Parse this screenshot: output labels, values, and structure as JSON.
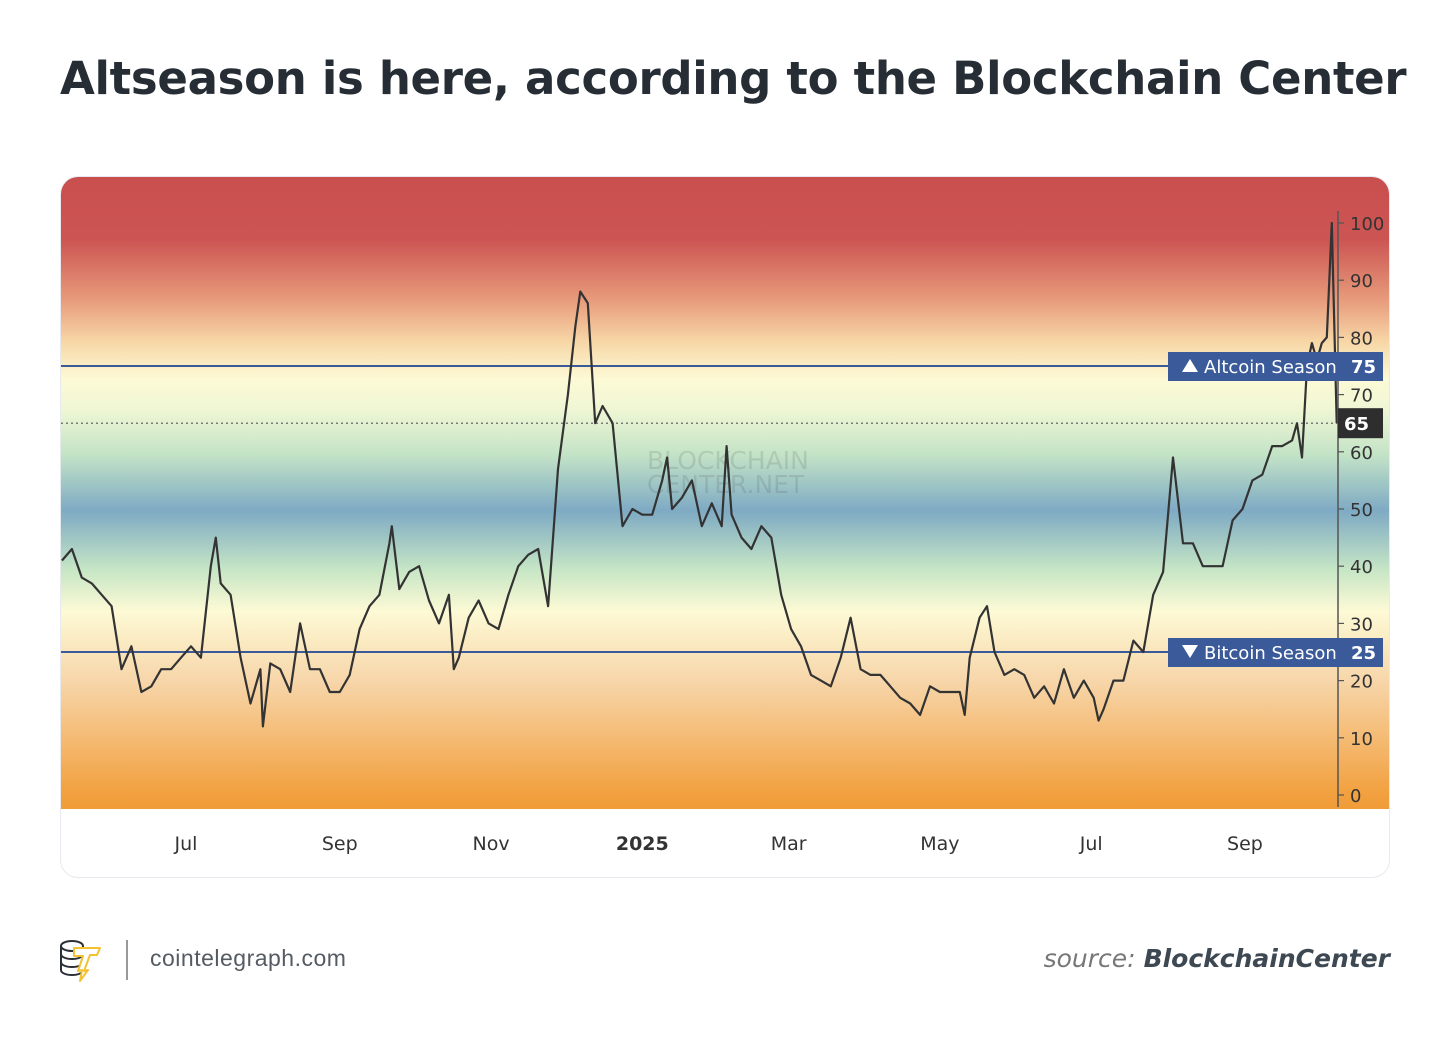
{
  "title": "Altseason is here, according to the Blockchain Center",
  "footer": {
    "site": "cointelegraph.com",
    "source_label": "source:",
    "source_name": "BlockchainCenter",
    "logo_icon": "cointelegraph-logo-icon"
  },
  "colors": {
    "line": "#333333",
    "season_band": "#3a5a9a",
    "current_box": "#2e2e2e",
    "gradient_top": "#c94f4f",
    "gradient_mid": "#7eaac4",
    "gradient_bottom": "#f2a040"
  },
  "chart_data": {
    "type": "line",
    "title": "",
    "watermark": "BLOCKCHAIN CENTER.NET",
    "ylim": [
      0,
      100
    ],
    "y_ticks": [
      "0",
      "10",
      "20",
      "30",
      "40",
      "50",
      "60",
      "70",
      "80",
      "90",
      "100"
    ],
    "x_ticks": [
      {
        "label": "Jul",
        "date": "2024-07-01",
        "bold": false
      },
      {
        "label": "Sep",
        "date": "2024-09-01",
        "bold": false
      },
      {
        "label": "Nov",
        "date": "2024-11-01",
        "bold": false
      },
      {
        "label": "2025",
        "date": "2025-01-01",
        "bold": true
      },
      {
        "label": "Mar",
        "date": "2025-03-01",
        "bold": false
      },
      {
        "label": "May",
        "date": "2025-05-01",
        "bold": false
      },
      {
        "label": "Jul",
        "date": "2025-07-01",
        "bold": false
      },
      {
        "label": "Sep",
        "date": "2025-09-01",
        "bold": false
      }
    ],
    "grid": false,
    "reference_lines": [
      {
        "label": "Altcoin Season",
        "value": 75,
        "value_label": "75",
        "direction": "up"
      },
      {
        "label": "Bitcoin Season",
        "value": 25,
        "value_label": "25",
        "direction": "down"
      }
    ],
    "current": {
      "value": 65,
      "label": "65"
    },
    "series": [
      {
        "x": [
          "2024-05-12",
          "2024-05-16",
          "2024-05-20",
          "2024-05-24",
          "2024-05-28",
          "2024-06-01",
          "2024-06-05",
          "2024-06-09",
          "2024-06-13",
          "2024-06-17",
          "2024-06-21",
          "2024-06-25",
          "2024-06-29",
          "2024-07-03",
          "2024-07-07",
          "2024-07-11",
          "2024-07-13",
          "2024-07-15",
          "2024-07-19",
          "2024-07-23",
          "2024-07-27",
          "2024-07-31",
          "2024-08-01",
          "2024-08-04",
          "2024-08-08",
          "2024-08-12",
          "2024-08-16",
          "2024-08-20",
          "2024-08-24",
          "2024-08-28",
          "2024-09-01",
          "2024-09-05",
          "2024-09-09",
          "2024-09-13",
          "2024-09-17",
          "2024-09-21",
          "2024-09-22",
          "2024-09-25",
          "2024-09-29",
          "2024-10-03",
          "2024-10-07",
          "2024-10-11",
          "2024-10-15",
          "2024-10-17",
          "2024-10-19",
          "2024-10-23",
          "2024-10-27",
          "2024-10-31",
          "2024-11-04",
          "2024-11-08",
          "2024-11-12",
          "2024-11-16",
          "2024-11-20",
          "2024-11-24",
          "2024-11-28",
          "2024-12-02",
          "2024-12-05",
          "2024-12-07",
          "2024-12-10",
          "2024-12-13",
          "2024-12-16",
          "2024-12-20",
          "2024-12-24",
          "2024-12-28",
          "2025-01-01",
          "2025-01-05",
          "2025-01-09",
          "2025-01-11",
          "2025-01-13",
          "2025-01-17",
          "2025-01-21",
          "2025-01-25",
          "2025-01-29",
          "2025-02-02",
          "2025-02-04",
          "2025-02-06",
          "2025-02-10",
          "2025-02-14",
          "2025-02-18",
          "2025-02-22",
          "2025-02-26",
          "2025-03-02",
          "2025-03-06",
          "2025-03-10",
          "2025-03-14",
          "2025-03-18",
          "2025-03-22",
          "2025-03-26",
          "2025-03-30",
          "2025-04-03",
          "2025-04-07",
          "2025-04-11",
          "2025-04-15",
          "2025-04-19",
          "2025-04-23",
          "2025-04-27",
          "2025-05-01",
          "2025-05-05",
          "2025-05-09",
          "2025-05-11",
          "2025-05-13",
          "2025-05-17",
          "2025-05-20",
          "2025-05-23",
          "2025-05-27",
          "2025-05-31",
          "2025-06-04",
          "2025-06-08",
          "2025-06-12",
          "2025-06-16",
          "2025-06-20",
          "2025-06-24",
          "2025-06-28",
          "2025-07-02",
          "2025-07-04",
          "2025-07-06",
          "2025-07-10",
          "2025-07-14",
          "2025-07-18",
          "2025-07-22",
          "2025-07-26",
          "2025-07-30",
          "2025-08-03",
          "2025-08-07",
          "2025-08-11",
          "2025-08-15",
          "2025-08-19",
          "2025-08-23",
          "2025-08-27",
          "2025-08-31",
          "2025-09-04",
          "2025-09-08",
          "2025-09-12",
          "2025-09-16",
          "2025-09-20",
          "2025-09-22",
          "2025-09-24",
          "2025-09-26",
          "2025-09-28",
          "2025-09-30",
          "2025-10-02",
          "2025-10-04",
          "2025-10-06",
          "2025-10-08"
        ],
        "values": [
          41,
          43,
          38,
          37,
          35,
          33,
          22,
          26,
          18,
          19,
          22,
          22,
          24,
          26,
          24,
          40,
          45,
          37,
          35,
          24,
          16,
          22,
          12,
          23,
          22,
          18,
          30,
          22,
          22,
          18,
          18,
          21,
          29,
          33,
          35,
          44,
          47,
          36,
          39,
          40,
          34,
          30,
          35,
          22,
          24,
          31,
          34,
          30,
          29,
          35,
          40,
          42,
          43,
          33,
          57,
          70,
          82,
          88,
          86,
          65,
          68,
          65,
          47,
          50,
          49,
          49,
          55,
          59,
          50,
          52,
          55,
          47,
          51,
          47,
          61,
          49,
          45,
          43,
          47,
          45,
          35,
          29,
          26,
          21,
          20,
          19,
          24,
          31,
          22,
          21,
          21,
          19,
          17,
          16,
          14,
          19,
          18,
          18,
          18,
          14,
          24,
          31,
          33,
          25,
          21,
          22,
          21,
          17,
          19,
          16,
          22,
          17,
          20,
          17,
          13,
          15,
          20,
          20,
          27,
          25,
          35,
          39,
          59,
          44,
          44,
          40,
          40,
          40,
          48,
          50,
          55,
          56,
          61,
          61,
          62,
          65,
          59,
          75,
          79,
          76,
          79,
          80,
          100,
          65
        ]
      }
    ]
  }
}
